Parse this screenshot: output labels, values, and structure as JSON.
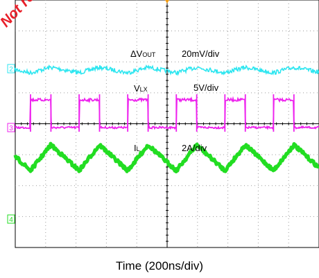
{
  "watermark": {
    "text": "Not rec",
    "color": "#e8202a"
  },
  "chart_data": {
    "type": "line",
    "title": "",
    "xlabel": "Time (200ns/div)",
    "ylabel": "",
    "grid": true,
    "x_divisions": 10,
    "y_divisions": 8,
    "channels": [
      {
        "id": "2",
        "name_main": "ΔV",
        "name_sub": "OUT",
        "scale": "20mV/div",
        "color": "#2ee6f0",
        "shape": "ripple"
      },
      {
        "id": "1",
        "name_main": "V",
        "name_sub": "LX",
        "scale": "5V/div",
        "color": "#ee22ee",
        "shape": "square"
      },
      {
        "id": "3",
        "name_main": "I",
        "name_sub": "L",
        "scale": "2A/div",
        "color": "#22dd22",
        "shape": "triangle"
      },
      {
        "id": "4",
        "name_main": "",
        "name_sub": "",
        "scale": "",
        "color": "#22dd22",
        "shape": "none"
      }
    ],
    "switching_period_div": 1.6,
    "duty_cycle": 0.42
  }
}
